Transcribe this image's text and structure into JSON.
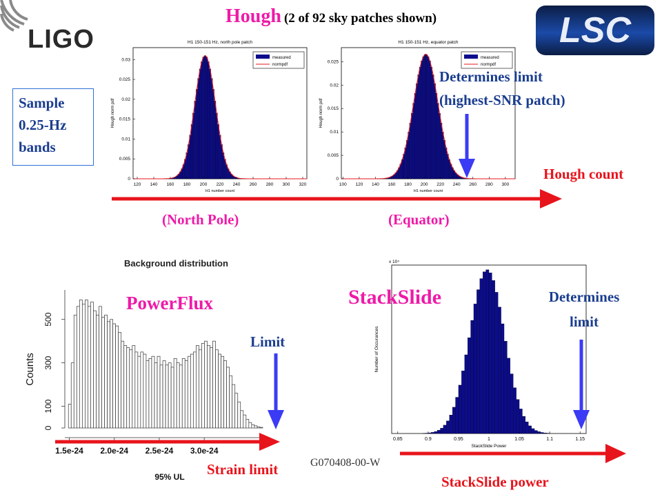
{
  "slide": {
    "title_main": "Hough",
    "title_sub": "(2 of 92 sky patches shown)",
    "ligo_logo": "LIGO",
    "lsc_logo": "LSC",
    "sample_box": [
      "Sample",
      "0.25-Hz",
      "bands"
    ],
    "determines_limit_hough": [
      "Determines limit",
      "(highest-SNR patch)"
    ],
    "hough_count": "Hough count",
    "north_pole": "(North Pole)",
    "equator": "(Equator)",
    "powerflux_label": "PowerFlux",
    "limit_label": "Limit",
    "stackslide_label": "StackSlide",
    "determines_limit_ss": [
      "Determines",
      "limit"
    ],
    "strain_limit": "Strain limit",
    "stackslide_power": "StackSlide power",
    "doc_id": "G070408-00-W",
    "colors": {
      "red": "#e8141c",
      "blue": "#3b3bf5",
      "magenta": "#ee1aa8",
      "navy_bars": "#0c0c8c",
      "text_blue": "#1a3d8f"
    }
  },
  "chart_data": [
    {
      "type": "bar",
      "title": "H1 150-151 Hz, north pole patch",
      "xlabel": "H1 number count",
      "ylabel": "Hough norm pdf",
      "xlim": [
        115,
        325
      ],
      "ylim": [
        0,
        0.033
      ],
      "xticks": [
        "120",
        "140",
        "160",
        "180",
        "200",
        "220",
        "240",
        "260",
        "280",
        "300",
        "320"
      ],
      "yticks": [
        "0",
        "0.005",
        "0.01",
        "0.015",
        "0.02",
        "0.025",
        "0.03"
      ],
      "legend": [
        "measured",
        "normpdf"
      ],
      "series": [
        {
          "name": "measured",
          "type": "bar",
          "mean": 202,
          "std": 12.5,
          "peak": 0.031
        },
        {
          "name": "normpdf",
          "type": "line",
          "mean": 202,
          "std": 12.5,
          "peak": 0.031
        }
      ]
    },
    {
      "type": "bar",
      "title": "H1 150-151 Hz, equator patch",
      "xlabel": "H1 number count",
      "ylabel": "Hough norm pdf",
      "xlim": [
        98,
        312
      ],
      "ylim": [
        0,
        0.028
      ],
      "xticks": [
        "100",
        "120",
        "140",
        "160",
        "180",
        "200",
        "220",
        "240",
        "260",
        "280",
        "300"
      ],
      "yticks": [
        "0",
        "0.005",
        "0.01",
        "0.015",
        "0.02",
        "0.025"
      ],
      "legend": [
        "measured",
        "normpdf"
      ],
      "series": [
        {
          "name": "measured",
          "type": "bar",
          "mean": 202,
          "std": 15,
          "peak": 0.0266
        },
        {
          "name": "normpdf",
          "type": "line",
          "mean": 202,
          "std": 15,
          "peak": 0.0266
        }
      ]
    },
    {
      "type": "bar",
      "title": "Background distribution",
      "xlabel": "95% UL",
      "ylabel": "Counts",
      "xlim": [
        1.45e-24,
        3.75e-24
      ],
      "ylim": [
        0,
        620
      ],
      "xticks": [
        "1.5e-24",
        "2.0e-24",
        "2.5e-24",
        "3.0e-24"
      ],
      "yticks": [
        "0",
        "100",
        "300",
        "500"
      ],
      "values": [
        110,
        300,
        520,
        560,
        590,
        570,
        590,
        560,
        580,
        540,
        520,
        560,
        510,
        520,
        490,
        500,
        480,
        470,
        440,
        400,
        380,
        370,
        360,
        380,
        350,
        330,
        350,
        340,
        310,
        320,
        330,
        300,
        330,
        290,
        310,
        290,
        300,
        280,
        320,
        300,
        290,
        320,
        310,
        330,
        340,
        350,
        380,
        360,
        390,
        400,
        380,
        370,
        400,
        360,
        340,
        330,
        310,
        280,
        240,
        200,
        160,
        120,
        80,
        60,
        40,
        25,
        15,
        10,
        5,
        3
      ]
    },
    {
      "type": "bar",
      "title": "",
      "xlabel": "StackSlide Power",
      "ylabel": "Number of Occurances",
      "xlim": [
        0.84,
        1.16
      ],
      "ylim": [
        0,
        72000
      ],
      "xticks": [
        "0.85",
        "0.9",
        "0.95",
        "1",
        "1.05",
        "1.1",
        "1.15"
      ],
      "series": [
        {
          "name": "",
          "type": "bar",
          "mean": 0.997,
          "std": 0.0285,
          "peak": 70000
        }
      ]
    }
  ]
}
